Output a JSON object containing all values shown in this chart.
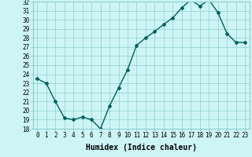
{
  "x": [
    0,
    1,
    2,
    3,
    4,
    5,
    6,
    7,
    8,
    9,
    10,
    11,
    12,
    13,
    14,
    15,
    16,
    17,
    18,
    19,
    20,
    21,
    22,
    23
  ],
  "y": [
    23.5,
    23.0,
    21.0,
    19.2,
    19.0,
    19.3,
    19.0,
    18.0,
    20.5,
    22.5,
    24.5,
    27.2,
    28.0,
    28.7,
    29.5,
    30.2,
    31.3,
    32.2,
    31.5,
    32.2,
    30.8,
    28.5,
    27.5,
    27.5
  ],
  "line_color": "#006060",
  "marker": "D",
  "marker_size": 2.0,
  "bg_color": "#cef5f5",
  "grid_color": "#8ecece",
  "xlabel": "Humidex (Indice chaleur)",
  "ylabel": "",
  "ylim": [
    18,
    32
  ],
  "xlim": [
    -0.5,
    23.5
  ],
  "yticks": [
    18,
    19,
    20,
    21,
    22,
    23,
    24,
    25,
    26,
    27,
    28,
    29,
    30,
    31,
    32
  ],
  "xticks": [
    0,
    1,
    2,
    3,
    4,
    5,
    6,
    7,
    8,
    9,
    10,
    11,
    12,
    13,
    14,
    15,
    16,
    17,
    18,
    19,
    20,
    21,
    22,
    23
  ],
  "xlabel_fontsize": 7,
  "tick_fontsize": 5.5,
  "line_width": 1.0
}
